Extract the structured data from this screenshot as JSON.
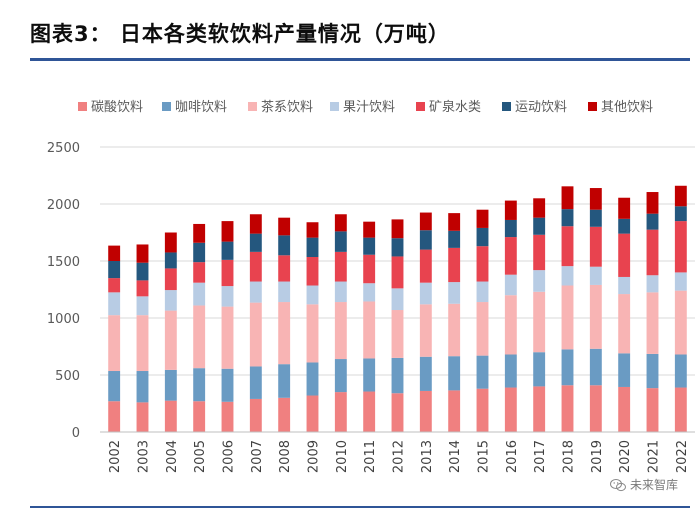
{
  "header": {
    "title": "图表3：  日本各类软饮料产量情况（万吨）"
  },
  "watermark": {
    "text": "未来智库"
  },
  "colors": [
    "#f08080",
    "#6a9bc3",
    "#f8b4b4",
    "#b8cce4",
    "#e8434f",
    "#24577e",
    "#c00000"
  ],
  "chart_data": {
    "type": "bar",
    "stacked": true,
    "title": "",
    "xlabel": "",
    "ylabel": "",
    "ylim": [
      0,
      2500
    ],
    "yticks": [
      0,
      500,
      1000,
      1500,
      2000,
      2500
    ],
    "grid": true,
    "legend_position": "top",
    "categories": [
      "2002",
      "2003",
      "2004",
      "2005",
      "2006",
      "2007",
      "2008",
      "2009",
      "2010",
      "2011",
      "2012",
      "2013",
      "2014",
      "2015",
      "2016",
      "2017",
      "2018",
      "2019",
      "2020",
      "2021",
      "2022"
    ],
    "series": [
      {
        "name": "碳酸饮料",
        "values": [
          270,
          260,
          275,
          270,
          265,
          290,
          300,
          320,
          350,
          355,
          340,
          360,
          365,
          380,
          390,
          400,
          410,
          410,
          395,
          385,
          390
        ]
      },
      {
        "name": "咖啡饮料",
        "values": [
          265,
          275,
          270,
          290,
          290,
          285,
          295,
          290,
          290,
          290,
          310,
          300,
          300,
          290,
          290,
          300,
          315,
          320,
          295,
          300,
          290
        ]
      },
      {
        "name": "茶系饮料",
        "values": [
          490,
          490,
          520,
          550,
          545,
          560,
          545,
          510,
          500,
          500,
          420,
          460,
          460,
          470,
          520,
          530,
          560,
          560,
          520,
          540,
          560
        ]
      },
      {
        "name": "果汁饮料",
        "values": [
          200,
          165,
          180,
          200,
          180,
          185,
          180,
          165,
          180,
          160,
          190,
          190,
          190,
          180,
          180,
          190,
          170,
          160,
          150,
          150,
          160
        ]
      },
      {
        "name": "矿泉水类",
        "values": [
          125,
          140,
          190,
          180,
          230,
          260,
          230,
          250,
          260,
          250,
          280,
          290,
          300,
          310,
          330,
          310,
          350,
          350,
          380,
          400,
          450
        ]
      },
      {
        "name": "运动饮料",
        "values": [
          150,
          155,
          140,
          170,
          160,
          160,
          175,
          170,
          180,
          150,
          160,
          170,
          150,
          160,
          150,
          150,
          150,
          150,
          130,
          140,
          130
        ]
      },
      {
        "name": "其他饮料",
        "values": [
          135,
          160,
          175,
          165,
          180,
          170,
          155,
          135,
          150,
          140,
          165,
          155,
          155,
          160,
          170,
          170,
          200,
          190,
          185,
          190,
          180
        ]
      }
    ]
  }
}
